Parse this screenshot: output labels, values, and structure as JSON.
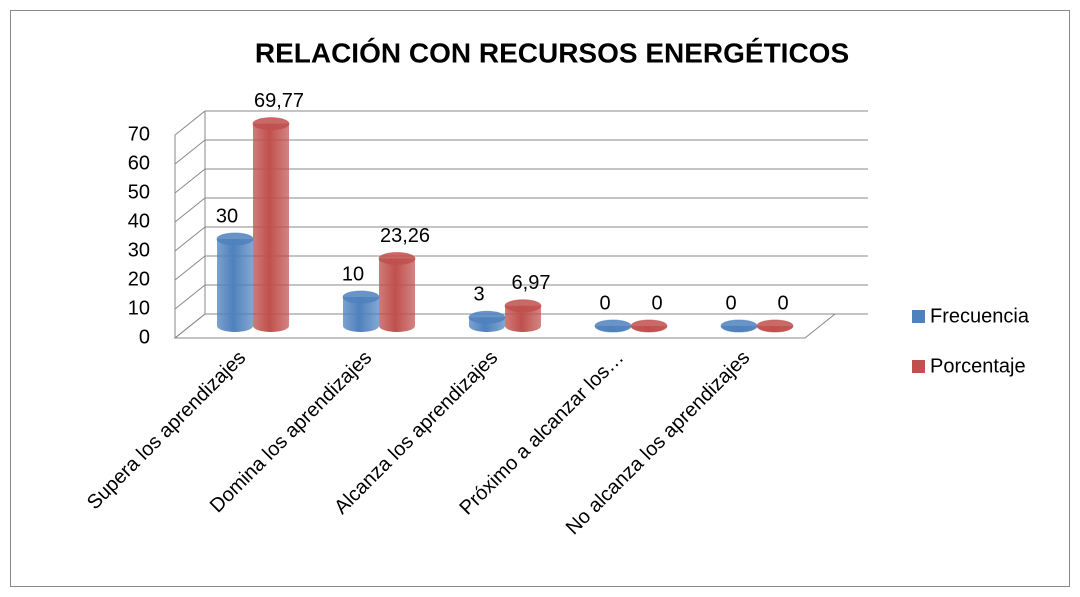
{
  "chart_data": {
    "type": "bar3d",
    "title": "RELACIÓN CON RECURSOS ENERGÉTICOS",
    "categories": [
      "Supera los aprendizajes",
      "Domina los aprendizajes",
      "Alcanza los aprendizajes",
      "Próximo a alcanzar los…",
      "No alcanza los aprendizajes"
    ],
    "series": [
      {
        "name": "Frecuencia",
        "color": "#4f81bd",
        "values": [
          30,
          10,
          3,
          0,
          0
        ]
      },
      {
        "name": "Porcentaje",
        "color": "#c0504d",
        "values": [
          69.77,
          23.26,
          6.97,
          0,
          0
        ],
        "value_labels": [
          "69,77",
          "23,26",
          "6,97",
          "0",
          "0"
        ]
      }
    ],
    "ylim": [
      0,
      70
    ],
    "yticks": [
      0,
      10,
      20,
      30,
      40,
      50,
      60,
      70
    ],
    "grid": true,
    "legend": "right"
  }
}
